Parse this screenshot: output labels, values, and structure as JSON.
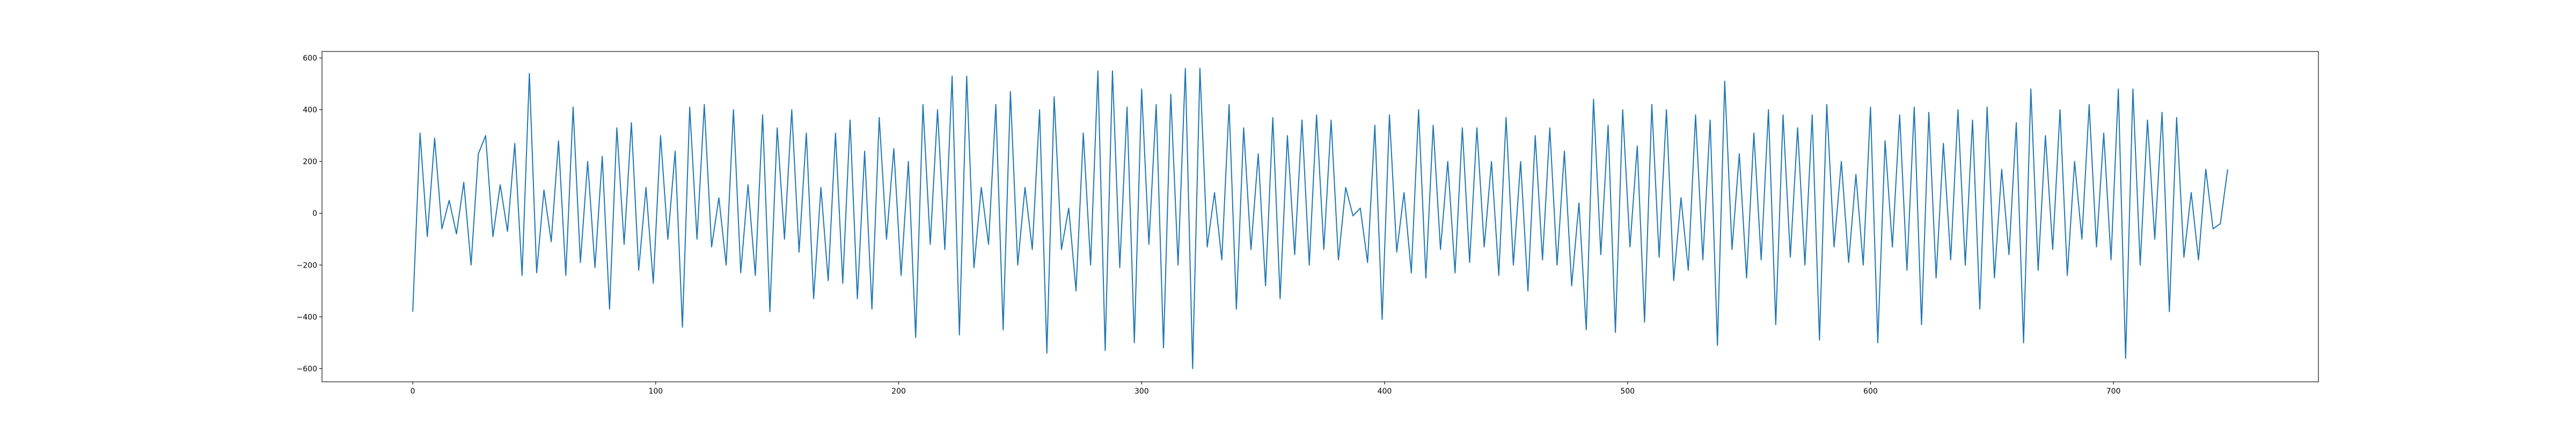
{
  "chart_data": {
    "type": "line",
    "color": "#1f77b4",
    "x": [
      0,
      3,
      6,
      9,
      12,
      15,
      18,
      21,
      24,
      27,
      30,
      33,
      36,
      39,
      42,
      45,
      48,
      51,
      54,
      57,
      60,
      63,
      66,
      69,
      72,
      75,
      78,
      81,
      84,
      87,
      90,
      93,
      96,
      99,
      102,
      105,
      108,
      111,
      114,
      117,
      120,
      123,
      126,
      129,
      132,
      135,
      138,
      141,
      144,
      147,
      150,
      153,
      156,
      159,
      162,
      165,
      168,
      171,
      174,
      177,
      180,
      183,
      186,
      189,
      192,
      195,
      198,
      201,
      204,
      207,
      210,
      213,
      216,
      219,
      222,
      225,
      228,
      231,
      234,
      237,
      240,
      243,
      246,
      249,
      252,
      255,
      258,
      261,
      264,
      267,
      270,
      273,
      276,
      279,
      282,
      285,
      288,
      291,
      294,
      297,
      300,
      303,
      306,
      309,
      312,
      315,
      318,
      321,
      324,
      327,
      330,
      333,
      336,
      339,
      342,
      345,
      348,
      351,
      354,
      357,
      360,
      363,
      366,
      369,
      372,
      375,
      378,
      381,
      384,
      387,
      390,
      393,
      396,
      399,
      402,
      405,
      408,
      411,
      414,
      417,
      420,
      423,
      426,
      429,
      432,
      435,
      438,
      441,
      444,
      447,
      450,
      453,
      456,
      459,
      462,
      465,
      468,
      471,
      474,
      477,
      480,
      483,
      486,
      489,
      492,
      495,
      498,
      501,
      504,
      507,
      510,
      513,
      516,
      519,
      522,
      525,
      528,
      531,
      534,
      537,
      540,
      543,
      546,
      549,
      552,
      555,
      558,
      561,
      564,
      567,
      570,
      573,
      576,
      579,
      582,
      585,
      588,
      591,
      594,
      597,
      600,
      603,
      606,
      609,
      612,
      615,
      618,
      621,
      624,
      627,
      630,
      633,
      636,
      639,
      642,
      645,
      648,
      651,
      654,
      657,
      660,
      663,
      666,
      669,
      672,
      675,
      678,
      681,
      684,
      687,
      690,
      693,
      696,
      699,
      702,
      705,
      708,
      711,
      714,
      717,
      720,
      723,
      726,
      729,
      732,
      735,
      738,
      741,
      744,
      747
    ],
    "values": [
      -380,
      310,
      -90,
      290,
      -60,
      50,
      -80,
      120,
      -200,
      230,
      300,
      -90,
      110,
      -70,
      270,
      -240,
      540,
      -230,
      90,
      -110,
      280,
      -240,
      410,
      -190,
      200,
      -210,
      220,
      -370,
      330,
      -120,
      350,
      -220,
      100,
      -270,
      300,
      -100,
      240,
      -440,
      410,
      -100,
      420,
      -130,
      60,
      -200,
      400,
      -230,
      110,
      -240,
      380,
      -380,
      330,
      -100,
      400,
      -150,
      310,
      -330,
      100,
      -260,
      310,
      -270,
      360,
      -330,
      240,
      -370,
      370,
      -100,
      250,
      -240,
      200,
      -480,
      420,
      -120,
      400,
      -140,
      530,
      -470,
      530,
      -210,
      100,
      -120,
      420,
      -450,
      470,
      -200,
      100,
      -140,
      400,
      -540,
      450,
      -140,
      20,
      -300,
      310,
      -200,
      550,
      -530,
      550,
      -210,
      410,
      -500,
      480,
      -120,
      420,
      -520,
      460,
      -200,
      560,
      -600,
      560,
      -130,
      80,
      -180,
      420,
      -370,
      330,
      -140,
      230,
      -280,
      370,
      -330,
      300,
      -160,
      360,
      -200,
      380,
      -140,
      360,
      -180,
      100,
      -10,
      20,
      -190,
      340,
      -410,
      380,
      -150,
      80,
      -230,
      400,
      -250,
      340,
      -140,
      200,
      -230,
      330,
      -190,
      330,
      -130,
      200,
      -240,
      370,
      -200,
      200,
      -300,
      300,
      -180,
      330,
      -200,
      240,
      -280,
      40,
      -450,
      440,
      -160,
      340,
      -460,
      400,
      -130,
      260,
      -420,
      420,
      -170,
      400,
      -260,
      60,
      -220,
      380,
      -180,
      360,
      -510,
      510,
      -140,
      230,
      -250,
      310,
      -180,
      400,
      -430,
      380,
      -170,
      330,
      -200,
      380,
      -490,
      420,
      -130,
      200,
      -190,
      150,
      -200,
      410,
      -500,
      280,
      -130,
      380,
      -220,
      410,
      -430,
      390,
      -250,
      270,
      -180,
      400,
      -200,
      360,
      -370,
      410,
      -250,
      170,
      -160,
      350,
      -500,
      480,
      -220,
      300,
      -140,
      400,
      -240,
      200,
      -100,
      420,
      -130,
      310,
      -180,
      480,
      -560,
      480,
      -200,
      360,
      -100,
      390,
      -380,
      370,
      -170,
      80,
      -180,
      170,
      -60,
      -40,
      170
    ],
    "xlim": [
      -37.35,
      784.35
    ],
    "ylim": [
      -651,
      625
    ],
    "xticks": [
      0,
      100,
      200,
      300,
      400,
      500,
      600,
      700
    ],
    "yticks": [
      {
        "value": -600,
        "label": "−600"
      },
      {
        "value": -400,
        "label": "−400"
      },
      {
        "value": -200,
        "label": "−200"
      },
      0,
      200,
      400,
      600
    ]
  }
}
